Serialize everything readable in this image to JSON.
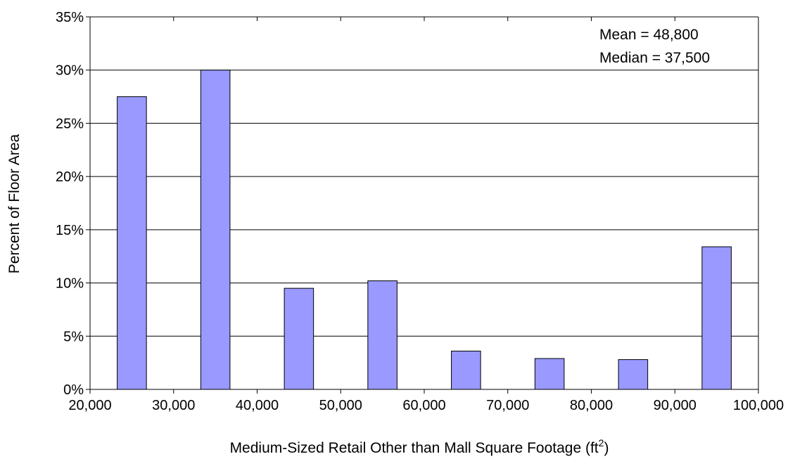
{
  "chart_data": {
    "type": "bar",
    "x": [
      25000,
      35000,
      45000,
      55000,
      65000,
      75000,
      85000,
      95000
    ],
    "values": [
      27.5,
      30.0,
      9.5,
      10.2,
      3.6,
      2.9,
      2.8,
      13.4
    ],
    "value_unit": "%",
    "xlabel": "Medium-Sized Retail Other than Mall Square Footage (ft",
    "xlabel_superscript": "2",
    "xlabel_suffix": ")",
    "ylabel": "Percent of Floor Area",
    "xlim": [
      20000,
      100000
    ],
    "ylim": [
      0,
      35
    ],
    "x_ticks": [
      {
        "value": 20000,
        "label": "20,000"
      },
      {
        "value": 30000,
        "label": "30,000"
      },
      {
        "value": 40000,
        "label": "40,000"
      },
      {
        "value": 50000,
        "label": "50,000"
      },
      {
        "value": 60000,
        "label": "60,000"
      },
      {
        "value": 70000,
        "label": "70,000"
      },
      {
        "value": 80000,
        "label": "80,000"
      },
      {
        "value": 90000,
        "label": "90,000"
      },
      {
        "value": 100000,
        "label": "100,000"
      }
    ],
    "y_ticks": [
      {
        "value": 0,
        "label": "0%"
      },
      {
        "value": 5,
        "label": "5%"
      },
      {
        "value": 10,
        "label": "10%"
      },
      {
        "value": 15,
        "label": "15%"
      },
      {
        "value": 20,
        "label": "20%"
      },
      {
        "value": 25,
        "label": "25%"
      },
      {
        "value": 30,
        "label": "30%"
      },
      {
        "value": 35,
        "label": "35%"
      }
    ],
    "annotations": [
      "Mean = 48,800",
      "Median = 37,500"
    ],
    "grid": "horizontal",
    "bar_color": "#9999ff",
    "bar_edge_color": "#000000",
    "grid_color": "#000000",
    "legend": "none"
  }
}
